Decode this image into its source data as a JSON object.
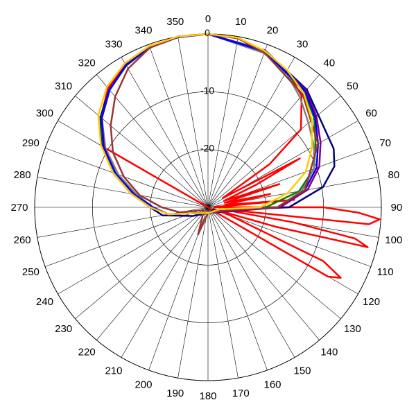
{
  "chart_data": {
    "type": "polar-line",
    "r_range": [
      -30,
      0
    ],
    "r_ticks": [
      0,
      -10,
      -20
    ],
    "grid": true,
    "angle_ticks": [
      0,
      10,
      20,
      30,
      40,
      50,
      60,
      70,
      80,
      90,
      100,
      110,
      120,
      130,
      140,
      150,
      160,
      170,
      180,
      190,
      200,
      210,
      220,
      230,
      240,
      250,
      260,
      270,
      280,
      290,
      300,
      310,
      320,
      330,
      340,
      350
    ],
    "angle_labels": [
      "0",
      "10",
      "20",
      "30",
      "40",
      "50",
      "60",
      "70",
      "80",
      "90",
      "100",
      "110",
      "120",
      "130",
      "140",
      "150",
      "160",
      "170",
      "180",
      "190",
      "200",
      "210",
      "220",
      "230",
      "240",
      "250",
      "260",
      "270",
      "280",
      "290",
      "300",
      "310",
      "320",
      "330",
      "340",
      "350"
    ],
    "radial_labels": [
      "0",
      "-10",
      "-20"
    ],
    "series": [
      {
        "color": "#ff0000",
        "points": [
          [
            0,
            0
          ],
          [
            10,
            -0.3
          ],
          [
            20,
            -1.2
          ],
          [
            30,
            -2.7
          ],
          [
            40,
            -4.8
          ],
          [
            50,
            -9
          ],
          [
            55,
            -17
          ],
          [
            58,
            -27
          ],
          [
            62,
            -12
          ],
          [
            65,
            -21
          ],
          [
            68,
            -27
          ],
          [
            72,
            -17
          ],
          [
            75,
            -27
          ],
          [
            78,
            -19
          ],
          [
            82,
            -27
          ],
          [
            85,
            -15
          ],
          [
            88,
            -29
          ],
          [
            90,
            -10
          ],
          [
            92,
            -4
          ],
          [
            94,
            -0.2
          ],
          [
            96,
            -2
          ],
          [
            98,
            -28
          ],
          [
            100,
            -15
          ],
          [
            102,
            -4
          ],
          [
            104,
            -1.5
          ],
          [
            106,
            -18
          ],
          [
            108,
            -29
          ],
          [
            110,
            -26
          ],
          [
            115,
            -8
          ],
          [
            118,
            -4
          ],
          [
            120,
            -6
          ],
          [
            122,
            -28
          ],
          [
            180,
            -30
          ],
          [
            270,
            -30
          ],
          [
            300,
            -9
          ],
          [
            310,
            -5.8
          ],
          [
            320,
            -3.1
          ],
          [
            330,
            -1.4
          ],
          [
            340,
            -0.4
          ],
          [
            350,
            0
          ]
        ]
      },
      {
        "color": "#000080",
        "points": [
          [
            0,
            0
          ],
          [
            20,
            -1.1
          ],
          [
            40,
            -3.4
          ],
          [
            55,
            -5.6
          ],
          [
            65,
            -6
          ],
          [
            72,
            -7
          ],
          [
            80,
            -9.8
          ],
          [
            90,
            -16
          ],
          [
            100,
            -27
          ],
          [
            120,
            -29
          ],
          [
            180,
            -29
          ],
          [
            240,
            -27
          ],
          [
            260,
            -22
          ],
          [
            270,
            -20
          ],
          [
            280,
            -16.5
          ],
          [
            290,
            -12.5
          ],
          [
            300,
            -8.7
          ],
          [
            310,
            -5.7
          ],
          [
            320,
            -3.4
          ],
          [
            330,
            -1.6
          ],
          [
            340,
            -0.5
          ],
          [
            350,
            -0.1
          ]
        ]
      },
      {
        "color": "#008000",
        "points": [
          [
            0,
            0
          ],
          [
            20,
            -1.3
          ],
          [
            40,
            -4
          ],
          [
            50,
            -6
          ],
          [
            60,
            -8.5
          ],
          [
            70,
            -10.5
          ],
          [
            80,
            -14
          ],
          [
            90,
            -20
          ],
          [
            100,
            -28
          ],
          [
            180,
            -29
          ],
          [
            250,
            -27
          ],
          [
            260,
            -23
          ],
          [
            270,
            -20.5
          ],
          [
            280,
            -17
          ],
          [
            290,
            -12.8
          ],
          [
            300,
            -9
          ],
          [
            310,
            -5.9
          ],
          [
            320,
            -3.5
          ],
          [
            330,
            -1.7
          ],
          [
            340,
            -0.5
          ],
          [
            350,
            -0.1
          ]
        ]
      },
      {
        "color": "#808080",
        "points": [
          [
            0,
            0
          ],
          [
            20,
            -1.6
          ],
          [
            30,
            -3
          ],
          [
            40,
            -5.2
          ],
          [
            50,
            -7.3
          ],
          [
            60,
            -8.8
          ],
          [
            70,
            -10.5
          ],
          [
            80,
            -13.5
          ],
          [
            90,
            -18
          ],
          [
            100,
            -26
          ],
          [
            180,
            -29
          ],
          [
            240,
            -28
          ],
          [
            260,
            -23
          ],
          [
            270,
            -20.5
          ],
          [
            280,
            -17.5
          ],
          [
            290,
            -13.5
          ],
          [
            300,
            -9.5
          ],
          [
            310,
            -6
          ],
          [
            320,
            -3.5
          ],
          [
            330,
            -1.6
          ],
          [
            340,
            -0.5
          ],
          [
            350,
            0
          ]
        ]
      },
      {
        "color": "#800080",
        "points": [
          [
            0,
            0
          ],
          [
            20,
            -1.2
          ],
          [
            40,
            -3.6
          ],
          [
            50,
            -5.5
          ],
          [
            60,
            -7.5
          ],
          [
            70,
            -9.5
          ],
          [
            80,
            -12.5
          ],
          [
            90,
            -17.5
          ],
          [
            100,
            -26
          ],
          [
            180,
            -29
          ],
          [
            250,
            -27
          ],
          [
            260,
            -23
          ],
          [
            270,
            -20.3
          ],
          [
            280,
            -17
          ],
          [
            290,
            -13
          ],
          [
            300,
            -9.2
          ],
          [
            310,
            -6
          ],
          [
            320,
            -3.4
          ],
          [
            330,
            -1.6
          ],
          [
            340,
            -0.6
          ],
          [
            350,
            -0.1
          ]
        ]
      },
      {
        "color": "#0000ff",
        "points": [
          [
            0,
            0
          ],
          [
            20,
            -1.3
          ],
          [
            40,
            -3.8
          ],
          [
            50,
            -5.8
          ],
          [
            60,
            -8
          ],
          [
            70,
            -10
          ],
          [
            80,
            -13
          ],
          [
            90,
            -18
          ],
          [
            100,
            -27
          ],
          [
            180,
            -29
          ],
          [
            250,
            -27
          ],
          [
            260,
            -23
          ],
          [
            270,
            -20.5
          ],
          [
            280,
            -17
          ],
          [
            290,
            -13
          ],
          [
            300,
            -9.1
          ],
          [
            310,
            -6
          ],
          [
            320,
            -3.5
          ],
          [
            330,
            -1.6
          ],
          [
            340,
            -0.5
          ],
          [
            350,
            -0.1
          ]
        ]
      },
      {
        "color": "#993333",
        "points": [
          [
            0,
            0
          ],
          [
            10,
            -0.3
          ],
          [
            20,
            -1.5
          ],
          [
            40,
            -4.5
          ],
          [
            60,
            -8
          ],
          [
            80,
            -13
          ],
          [
            90,
            -18
          ],
          [
            100,
            -27
          ],
          [
            180,
            -29
          ],
          [
            200,
            -25
          ],
          [
            210,
            -28
          ],
          [
            240,
            -29
          ],
          [
            260,
            -25
          ],
          [
            270,
            -22
          ],
          [
            280,
            -18
          ],
          [
            290,
            -14.5
          ],
          [
            300,
            -11
          ],
          [
            310,
            -8
          ],
          [
            320,
            -5
          ],
          [
            330,
            -2.3
          ],
          [
            340,
            -0.6
          ],
          [
            350,
            0
          ]
        ]
      },
      {
        "color": "#ffcc00",
        "points": [
          [
            0,
            0
          ],
          [
            10,
            -0.2
          ],
          [
            20,
            -1.2
          ],
          [
            30,
            -2.6
          ],
          [
            40,
            -4.2
          ],
          [
            50,
            -6.5
          ],
          [
            60,
            -9.2
          ],
          [
            70,
            -12
          ],
          [
            80,
            -16
          ],
          [
            90,
            -21
          ],
          [
            100,
            -28
          ],
          [
            180,
            -29
          ],
          [
            250,
            -27
          ],
          [
            260,
            -23
          ],
          [
            270,
            -20
          ],
          [
            280,
            -16.5
          ],
          [
            290,
            -12.5
          ],
          [
            300,
            -8.6
          ],
          [
            310,
            -5.2
          ],
          [
            320,
            -2.8
          ],
          [
            330,
            -1.2
          ],
          [
            340,
            -0.3
          ],
          [
            350,
            0
          ]
        ]
      }
    ]
  }
}
